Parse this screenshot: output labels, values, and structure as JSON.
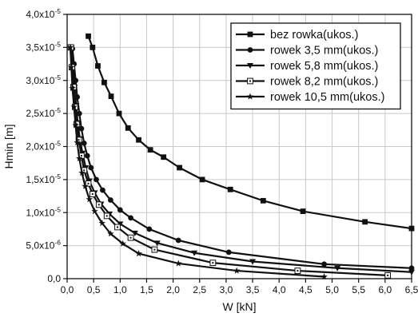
{
  "chart_data": {
    "type": "line",
    "xlabel": "W [kN]",
    "ylabel": "Hmin [m]",
    "xlim": [
      0,
      6.5
    ],
    "ylim": [
      0,
      4e-05
    ],
    "grid": true,
    "legend_position": "top-right",
    "x_ticks": [
      {
        "v": 0.0,
        "label": "0,0"
      },
      {
        "v": 0.5,
        "label": "0,5"
      },
      {
        "v": 1.0,
        "label": "1,0"
      },
      {
        "v": 1.5,
        "label": "1,5"
      },
      {
        "v": 2.0,
        "label": "2,0"
      },
      {
        "v": 2.5,
        "label": "2,5"
      },
      {
        "v": 3.0,
        "label": "3,0"
      },
      {
        "v": 3.5,
        "label": "3,5"
      },
      {
        "v": 4.0,
        "label": "4,0"
      },
      {
        "v": 4.5,
        "label": "4,5"
      },
      {
        "v": 5.0,
        "label": "5,0"
      },
      {
        "v": 5.5,
        "label": "5,5"
      },
      {
        "v": 6.0,
        "label": "6,0"
      },
      {
        "v": 6.5,
        "label": "6,5"
      }
    ],
    "y_ticks": [
      {
        "v": 0.0,
        "label": "0,0"
      },
      {
        "v": 5e-06,
        "label": "5,0x10-6"
      },
      {
        "v": 1e-05,
        "label": "1,0x10-5"
      },
      {
        "v": 1.5e-05,
        "label": "1,5x10-5"
      },
      {
        "v": 2e-05,
        "label": "2,0x10-5"
      },
      {
        "v": 2.5e-05,
        "label": "2,5x10-5"
      },
      {
        "v": 3e-05,
        "label": "3,0x10-5"
      },
      {
        "v": 3.5e-05,
        "label": "3,5x10-5"
      },
      {
        "v": 4e-05,
        "label": "4,0x10-5"
      }
    ],
    "series": [
      {
        "name": "bez rowka(ukos.)",
        "marker": "square",
        "color": "#111111",
        "x": [
          0.4,
          0.48,
          0.58,
          0.7,
          0.83,
          0.98,
          1.15,
          1.35,
          1.57,
          1.82,
          2.12,
          2.55,
          3.08,
          3.7,
          4.45,
          5.62,
          6.5
        ],
        "y": [
          3.67e-05,
          3.5e-05,
          3.22e-05,
          2.97e-05,
          2.76e-05,
          2.5e-05,
          2.28e-05,
          2.1e-05,
          1.95e-05,
          1.84e-05,
          1.68e-05,
          1.5e-05,
          1.35e-05,
          1.18e-05,
          1.02e-05,
          8.6e-06,
          7.6e-06
        ]
      },
      {
        "name": "rowek 3,5 mm(ukos.)",
        "marker": "circle",
        "color": "#111111",
        "x": [
          0.1,
          0.13,
          0.16,
          0.19,
          0.23,
          0.27,
          0.32,
          0.38,
          0.45,
          0.55,
          0.67,
          0.82,
          1.0,
          1.2,
          1.55,
          2.1,
          3.05,
          4.85,
          6.5
        ],
        "y": [
          3.48e-05,
          3.25e-05,
          3e-05,
          2.75e-05,
          2.5e-05,
          2.27e-05,
          2.05e-05,
          1.86e-05,
          1.68e-05,
          1.5e-05,
          1.34e-05,
          1.19e-05,
          1.04e-05,
          9.2e-06,
          7.5e-06,
          5.8e-06,
          4e-06,
          2.2e-06,
          1.6e-06
        ]
      },
      {
        "name": "rowek 5,8 mm(ukos.)",
        "marker": "triangle-down",
        "color": "#111111",
        "x": [
          0.08,
          0.11,
          0.14,
          0.17,
          0.2,
          0.24,
          0.29,
          0.35,
          0.42,
          0.52,
          0.64,
          0.8,
          1.0,
          1.28,
          1.7,
          2.4,
          3.5,
          5.1,
          6.5
        ],
        "y": [
          3.5e-05,
          3.2e-05,
          2.9e-05,
          2.62e-05,
          2.36e-05,
          2.12e-05,
          1.9e-05,
          1.68e-05,
          1.48e-05,
          1.3e-05,
          1.13e-05,
          9.8e-06,
          8.3e-06,
          6.9e-06,
          5.4e-06,
          3.9e-06,
          2.6e-06,
          1.6e-06,
          1e-06
        ]
      },
      {
        "name": "rowek 8,2 mm(ukos.)",
        "marker": "square-open",
        "color": "#111111",
        "x": [
          0.07,
          0.09,
          0.12,
          0.15,
          0.18,
          0.22,
          0.27,
          0.32,
          0.4,
          0.48,
          0.6,
          0.75,
          0.95,
          1.2,
          1.65,
          2.75,
          4.35,
          6.05
        ],
        "y": [
          3.5e-05,
          3.2e-05,
          2.9e-05,
          2.6e-05,
          2.34e-05,
          2.1e-05,
          1.86e-05,
          1.64e-05,
          1.44e-05,
          1.28e-05,
          1.12e-05,
          9.5e-06,
          7.8e-06,
          6.2e-06,
          4.4e-06,
          2.4e-06,
          1.2e-06,
          5e-07
        ]
      },
      {
        "name": "rowek 10,5 mm(ukos.)",
        "marker": "star",
        "color": "#111111",
        "x": [
          0.06,
          0.08,
          0.1,
          0.13,
          0.16,
          0.19,
          0.23,
          0.28,
          0.34,
          0.42,
          0.52,
          0.66,
          0.82,
          1.05,
          1.35,
          2.1,
          3.2,
          4.85
        ],
        "y": [
          3.5e-05,
          3.2e-05,
          2.88e-05,
          2.6e-05,
          2.32e-05,
          2.06e-05,
          1.82e-05,
          1.6e-05,
          1.4e-05,
          1.2e-05,
          1.02e-05,
          8.4e-06,
          6.8e-06,
          5.3e-06,
          3.8e-06,
          2.3e-06,
          1.2e-06,
          3e-07
        ]
      }
    ]
  }
}
